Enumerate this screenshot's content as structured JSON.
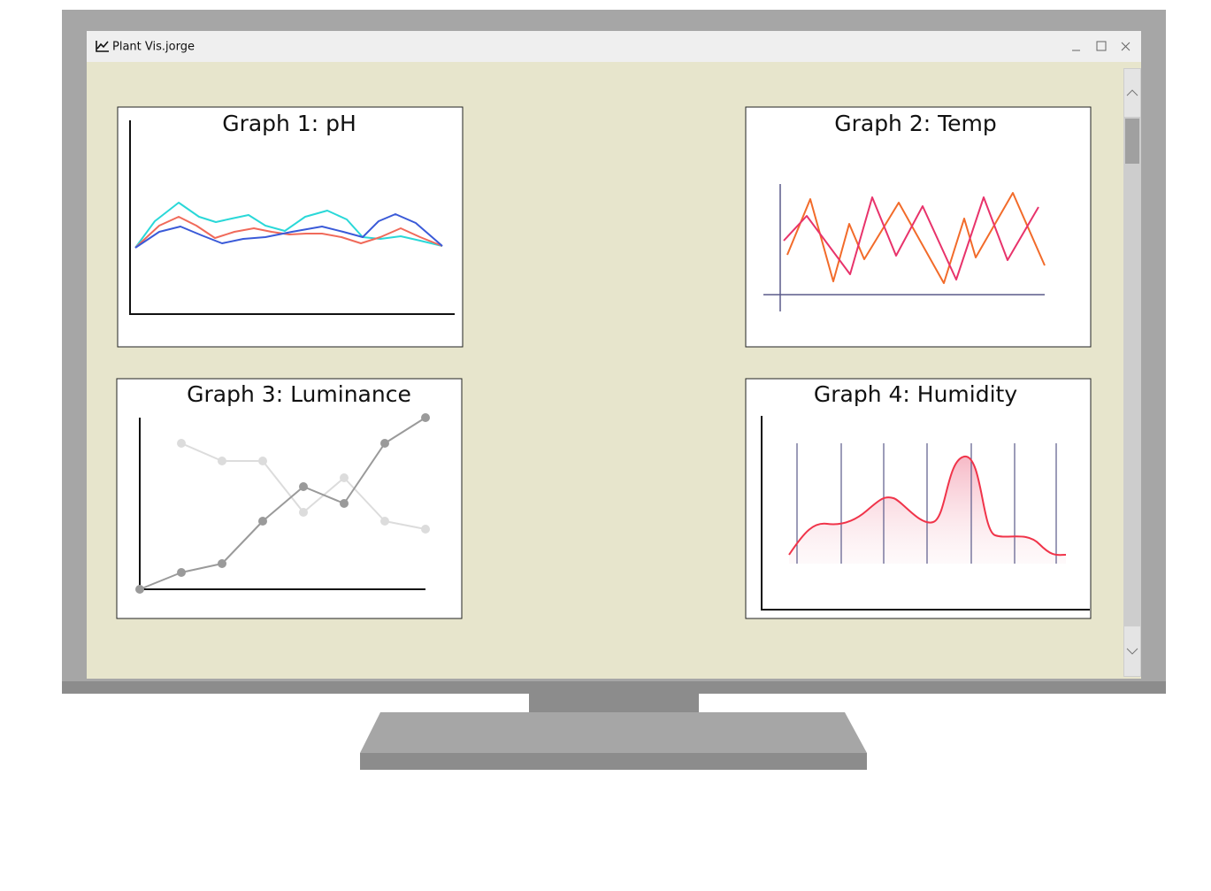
{
  "window": {
    "title": "Plant Vis.jorge"
  },
  "graphs": [
    {
      "title": "Graph 1: pH"
    },
    {
      "title": "Graph 2: Temp"
    },
    {
      "title": "Graph 3: Luminance"
    },
    {
      "title": "Graph 4: Humidity"
    }
  ]
}
